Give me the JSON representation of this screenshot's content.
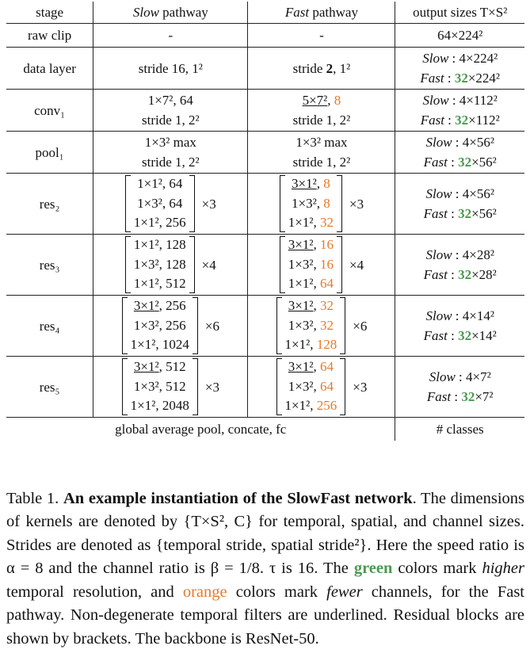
{
  "table": {
    "headers": {
      "stage": "stage",
      "slow_it": "Slow",
      "slow_rest": " pathway",
      "fast_it": "Fast",
      "fast_rest": " pathway",
      "out": "output sizes T×S²"
    },
    "raw_clip": {
      "stage": "raw clip",
      "slow": "-",
      "fast": "-",
      "out": "64×224²"
    },
    "data_layer": {
      "stage": "data layer",
      "slow": "stride 16, 1²",
      "fast_pre": "stride ",
      "fast_bold": "2",
      "fast_post": ", 1²",
      "out_slow_label": "Slow",
      "out_slow_val": " : 4×224²",
      "out_fast_label": "Fast",
      "out_fast_pre": " : ",
      "out_fast_green": "32",
      "out_fast_post": "×224²"
    },
    "conv1": {
      "stage": "conv₁",
      "slow1": "1×7², 64",
      "slow2": "stride 1, 2²",
      "fast1_ul": "5×7²",
      "fast1_mid": ", ",
      "fast1_or": "8",
      "fast2": "stride 1, 2²",
      "out_slow_label": "Slow",
      "out_slow_val": " : 4×112²",
      "out_fast_label": "Fast",
      "out_fast_pre": " : ",
      "out_fast_green": "32",
      "out_fast_post": "×112²"
    },
    "pool1": {
      "stage": "pool₁",
      "slow1": "1×3² max",
      "slow2": "stride 1, 2²",
      "fast1": "1×3² max",
      "fast2": "stride 1, 2²",
      "out_slow_label": "Slow",
      "out_slow_val": " : 4×56²",
      "out_fast_label": "Fast",
      "out_fast_pre": " : ",
      "out_fast_green": "32",
      "out_fast_post": "×56²"
    },
    "res2": {
      "stage": "res₂",
      "slow": [
        "1×1², 64",
        "1×3², 64",
        "1×1², 256"
      ],
      "slow_mult": "×3",
      "fast": [
        {
          "k": "3×1²",
          "ul": true,
          "c": "8"
        },
        {
          "k": "1×3²",
          "ul": false,
          "c": "8"
        },
        {
          "k": "1×1²",
          "ul": false,
          "c": "32"
        }
      ],
      "fast_mult": "×3",
      "out_slow_label": "Slow",
      "out_slow_val": " : 4×56²",
      "out_fast_label": "Fast",
      "out_fast_pre": " : ",
      "out_fast_green": "32",
      "out_fast_post": "×56²"
    },
    "res3": {
      "stage": "res₃",
      "slow": [
        "1×1², 128",
        "1×3², 128",
        "1×1², 512"
      ],
      "slow_mult": "×4",
      "fast": [
        {
          "k": "3×1²",
          "ul": true,
          "c": "16"
        },
        {
          "k": "1×3²",
          "ul": false,
          "c": "16"
        },
        {
          "k": "1×1²",
          "ul": false,
          "c": "64"
        }
      ],
      "fast_mult": "×4",
      "out_slow_label": "Slow",
      "out_slow_val": " : 4×28²",
      "out_fast_label": "Fast",
      "out_fast_pre": " : ",
      "out_fast_green": "32",
      "out_fast_post": "×28²"
    },
    "res4": {
      "stage": "res₄",
      "slow": [
        {
          "k": "3×1²",
          "ul": true,
          "c": "256"
        },
        {
          "k": "1×3²",
          "ul": false,
          "c": "256"
        },
        {
          "k": "1×1²",
          "ul": false,
          "c": "1024"
        }
      ],
      "slow_mult": "×6",
      "fast": [
        {
          "k": "3×1²",
          "ul": true,
          "c": "32"
        },
        {
          "k": "1×3²",
          "ul": false,
          "c": "32"
        },
        {
          "k": "1×1²",
          "ul": false,
          "c": "128"
        }
      ],
      "fast_mult": "×6",
      "out_slow_label": "Slow",
      "out_slow_val": " : 4×14²",
      "out_fast_label": "Fast",
      "out_fast_pre": " : ",
      "out_fast_green": "32",
      "out_fast_post": "×14²"
    },
    "res5": {
      "stage": "res₅",
      "slow": [
        {
          "k": "3×1²",
          "ul": true,
          "c": "512"
        },
        {
          "k": "1×3²",
          "ul": false,
          "c": "512"
        },
        {
          "k": "1×1²",
          "ul": false,
          "c": "2048"
        }
      ],
      "slow_mult": "×3",
      "fast": [
        {
          "k": "3×1²",
          "ul": true,
          "c": "64"
        },
        {
          "k": "1×3²",
          "ul": false,
          "c": "64"
        },
        {
          "k": "1×1²",
          "ul": false,
          "c": "256"
        }
      ],
      "fast_mult": "×3",
      "out_slow_label": "Slow",
      "out_slow_val": " : 4×7²",
      "out_fast_label": "Fast",
      "out_fast_pre": " : ",
      "out_fast_green": "32",
      "out_fast_post": "×7²"
    },
    "final": {
      "left": "global average pool, concate, fc",
      "right": "# classes"
    }
  },
  "caption": {
    "label": "Table 1. ",
    "bold_title": "An example instantiation of the SlowFast network",
    "t1": ". The dimensions of kernels are denoted by {T×S², C} for temporal, spatial, and channel sizes. Strides are denoted as {temporal stride, spatial stride²}. Here the speed ratio is α = 8 and the channel ratio is β = 1/8. τ is 16. The ",
    "green_word": "green",
    "t2": " colors mark ",
    "it_higher": "higher",
    "t3": " temporal resolution, and ",
    "orange_word": "orange",
    "t4": " colors mark ",
    "it_fewer": "fewer",
    "t5": " channels, for the Fast pathway. Non-degenerate temporal filters are underlined. Residual blocks are shown by brackets. The backbone is ResNet-50.",
    "colors": {
      "green": "#4a9a4f",
      "orange": "#e8782a"
    }
  }
}
